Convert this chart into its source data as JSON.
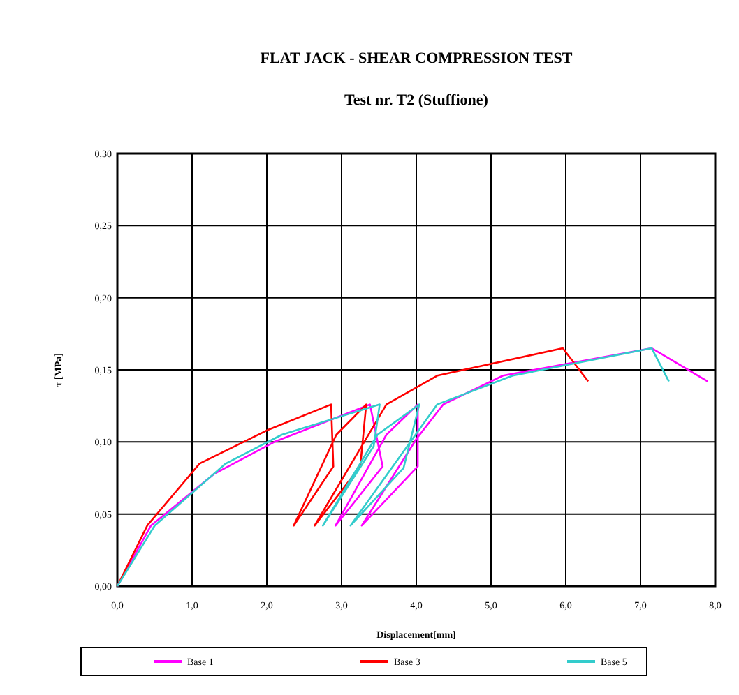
{
  "chart_data": {
    "type": "line",
    "title": "FLAT JACK - SHEAR COMPRESSION TEST",
    "subtitle": "Test nr. T2 (Stuffione)",
    "xlabel": "Displacement[mm]",
    "ylabel": "τ [MPa]",
    "xlim": [
      0,
      8
    ],
    "xticks": [
      {
        "value": 0,
        "label": "0,0"
      },
      {
        "value": 1,
        "label": "1,0"
      },
      {
        "value": 2,
        "label": "2,0"
      },
      {
        "value": 3,
        "label": "3,0"
      },
      {
        "value": 4,
        "label": "4,0"
      },
      {
        "value": 5,
        "label": "5,0"
      },
      {
        "value": 6,
        "label": "6,0"
      },
      {
        "value": 7,
        "label": "7,0"
      },
      {
        "value": 8,
        "label": "8,0"
      }
    ],
    "ylim": [
      0,
      0.3
    ],
    "yticks": [
      {
        "value": 0,
        "label": "0,00"
      },
      {
        "value": 0.05,
        "label": "0,05"
      },
      {
        "value": 0.1,
        "label": "0,10"
      },
      {
        "value": 0.15,
        "label": "0,15"
      },
      {
        "value": 0.2,
        "label": "0,20"
      },
      {
        "value": 0.25,
        "label": "0,25"
      },
      {
        "value": 0.3,
        "label": "0,30"
      }
    ],
    "grid": true,
    "legend": "bottom",
    "marker": "none",
    "line_style": "solid",
    "series": [
      {
        "name": "Base 1",
        "color": "#ff00ff",
        "x": [
          0,
          0.45,
          1.3,
          2.1,
          3.38,
          3.55,
          2.92,
          3.6,
          4.02,
          4.02,
          3.27,
          4.0,
          4.36,
          5.16,
          7.15,
          7.9
        ],
        "values": [
          0,
          0.042,
          0.078,
          0.1,
          0.126,
          0.083,
          0.042,
          0.105,
          0.126,
          0.083,
          0.042,
          0.102,
          0.126,
          0.146,
          0.165,
          0.142
        ]
      },
      {
        "name": "Base 3",
        "color": "#ff0000",
        "x": [
          0,
          0.4,
          1.1,
          2.0,
          2.86,
          2.89,
          2.36,
          2.93,
          3.33,
          3.25,
          2.64,
          3.6,
          4.28,
          5.96,
          6.3
        ],
        "values": [
          0,
          0.042,
          0.085,
          0.108,
          0.126,
          0.083,
          0.042,
          0.105,
          0.126,
          0.083,
          0.042,
          0.126,
          0.146,
          0.165,
          0.142
        ]
      },
      {
        "name": "Base 5",
        "color": "#33cccc",
        "x": [
          0,
          0.5,
          1.45,
          2.2,
          3.51,
          3.43,
          2.75,
          3.48,
          4.04,
          3.83,
          3.12,
          4.28,
          5.29,
          7.15,
          7.38
        ],
        "values": [
          0,
          0.042,
          0.085,
          0.105,
          0.126,
          0.097,
          0.042,
          0.105,
          0.126,
          0.082,
          0.042,
          0.126,
          0.146,
          0.165,
          0.142
        ]
      }
    ]
  }
}
